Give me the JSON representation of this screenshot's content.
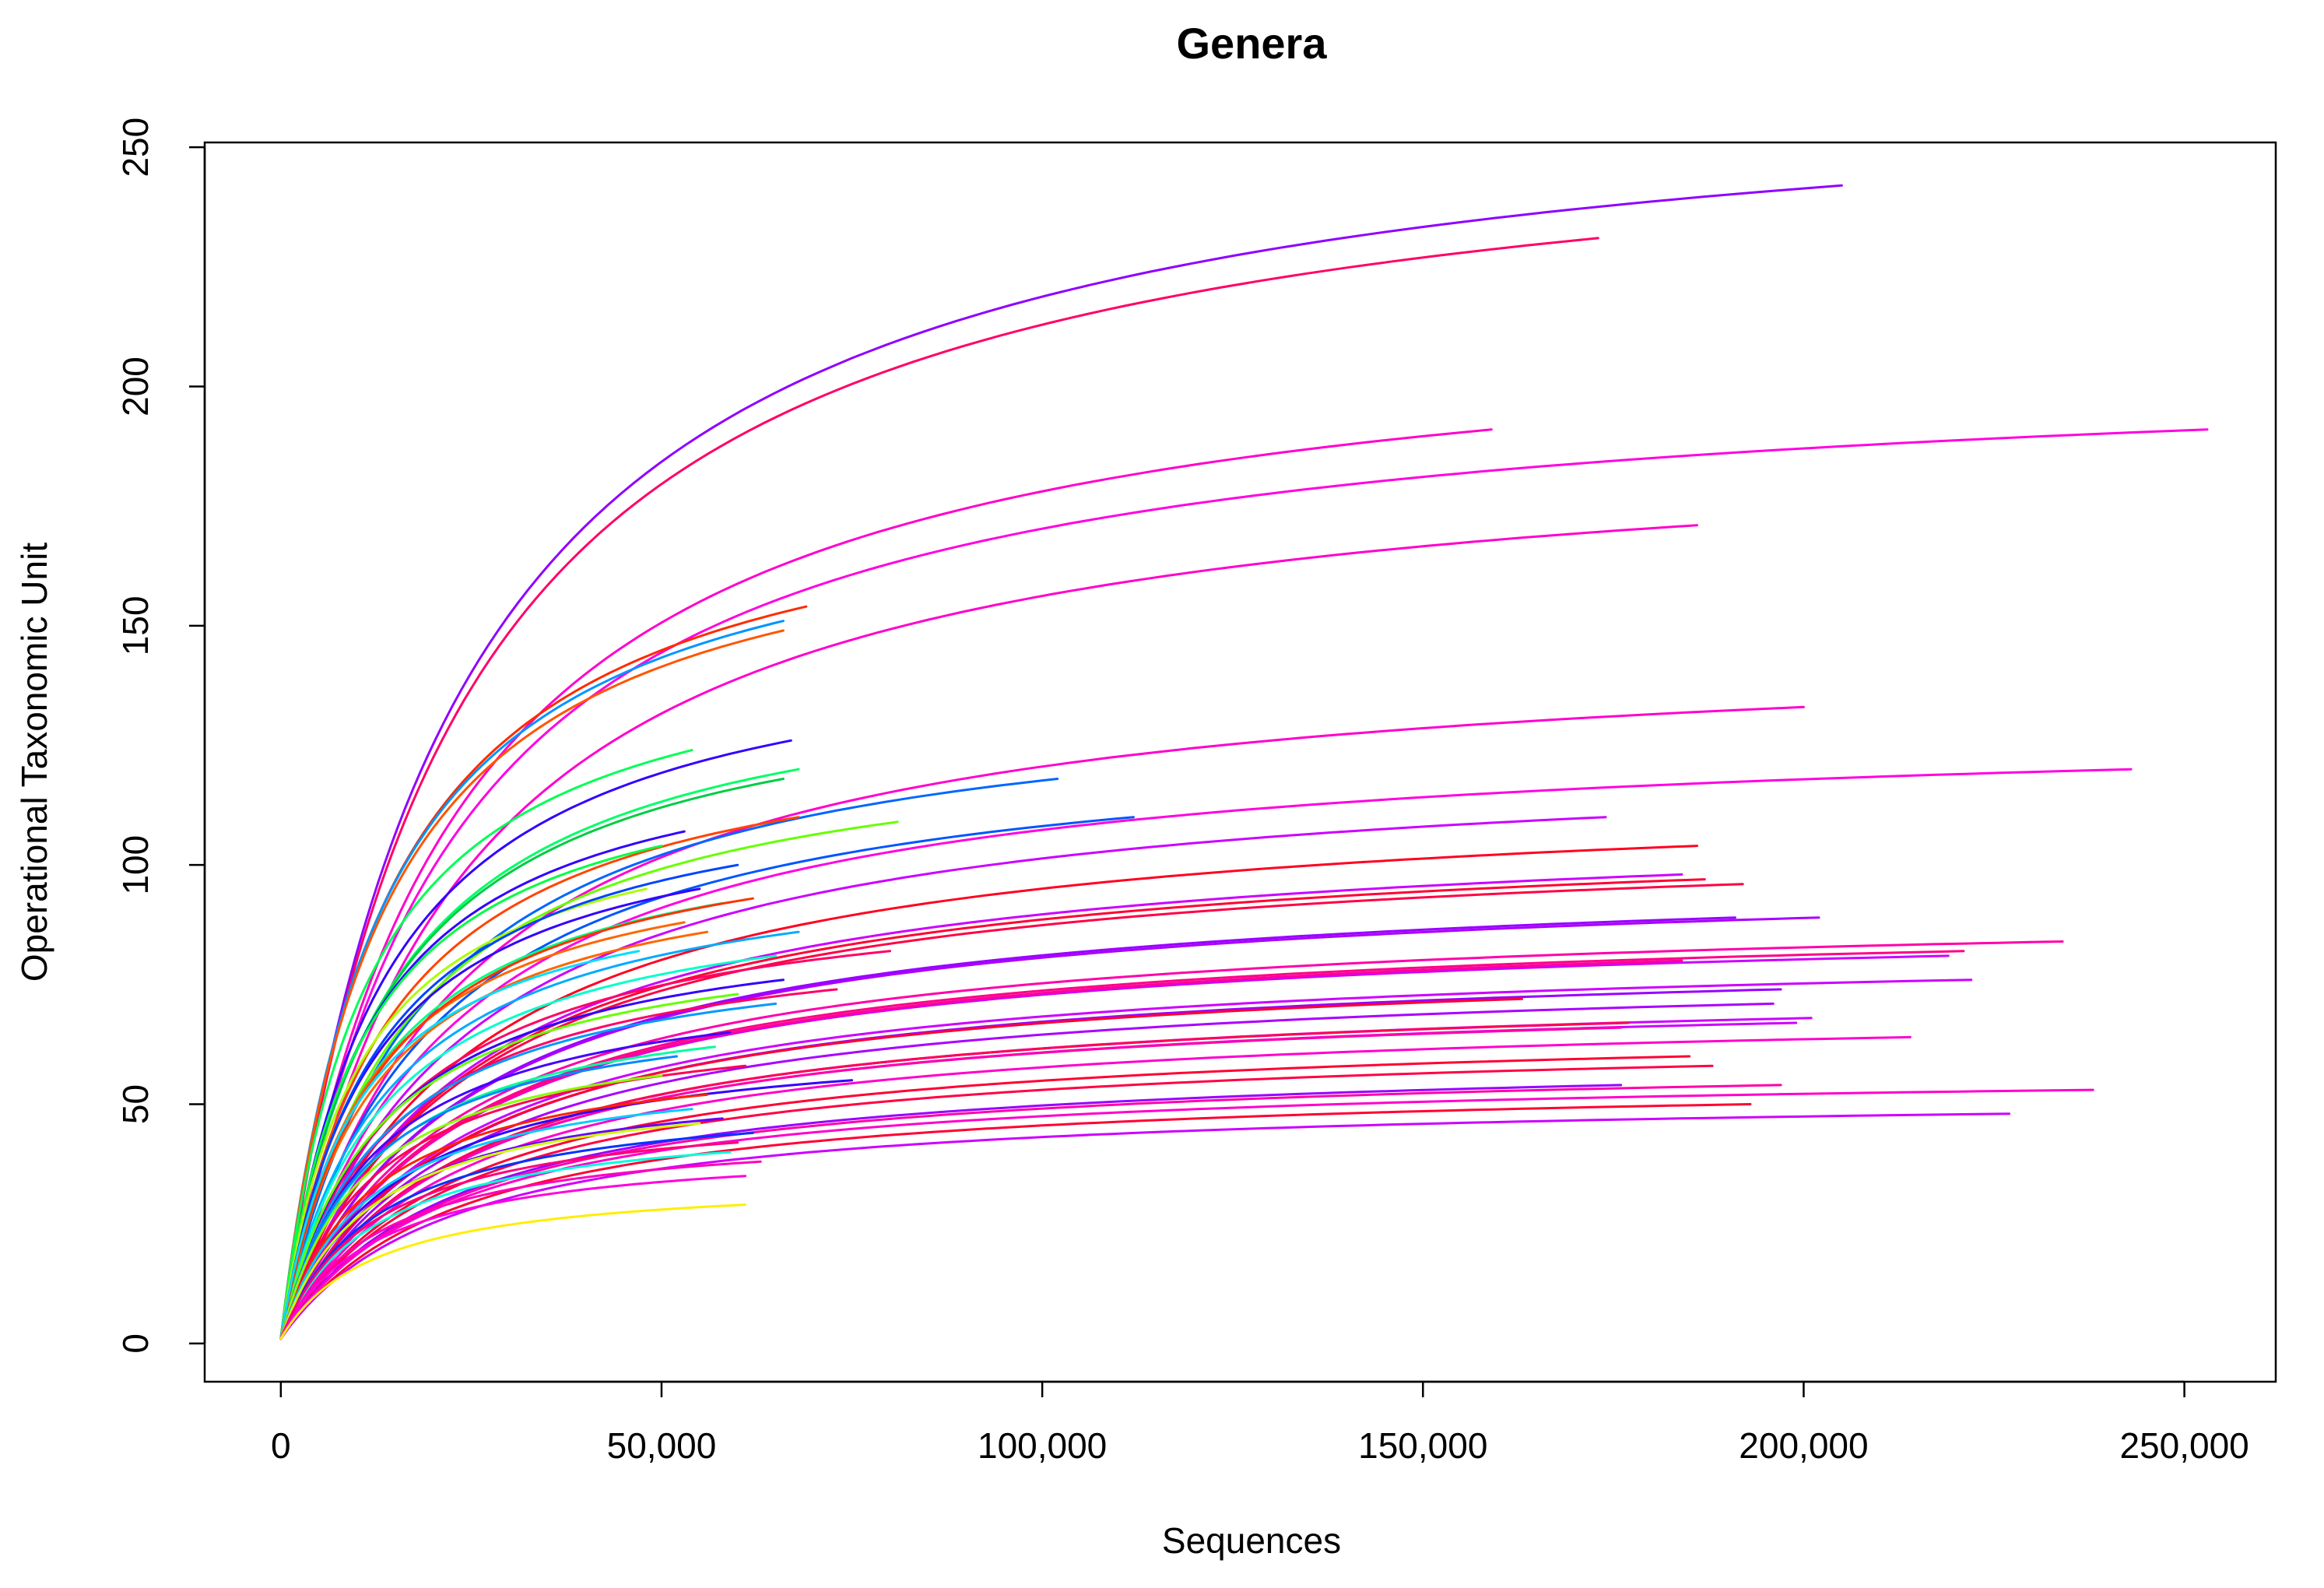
{
  "chart_data": {
    "type": "line",
    "title": "Genera",
    "xlabel": "Sequences",
    "ylabel": "Operational Taxonomic Unit",
    "xlim": [
      -10000,
      262000
    ],
    "ylim": [
      -8,
      251
    ],
    "x_ticks": [
      0,
      50000,
      100000,
      150000,
      200000,
      250000
    ],
    "x_tick_labels": [
      "0",
      "50,000",
      "100,000",
      "150,000",
      "200,000",
      "250,000"
    ],
    "y_ticks": [
      0,
      50,
      100,
      150,
      200,
      250
    ],
    "y_tick_labels": [
      "0",
      "50",
      "100",
      "150",
      "200",
      "250"
    ],
    "legend": "none",
    "grid": false,
    "curve_model": "y = 1 + (Smax - 1) * x / (K + x), rarefaction curves starting at 0 sequences",
    "series": [
      {
        "color": "#8F00FF",
        "values": [
          [
            0,
            1
          ],
          [
            205000,
            242
          ]
        ]
      },
      {
        "color": "#FF0066",
        "values": [
          [
            0,
            1
          ],
          [
            173000,
            231
          ]
        ]
      },
      {
        "color": "#FF00CC",
        "values": [
          [
            0,
            1
          ],
          [
            159000,
            191
          ]
        ]
      },
      {
        "color": "#FF00E0",
        "values": [
          [
            0,
            1
          ],
          [
            253000,
            191
          ]
        ]
      },
      {
        "color": "#FF00CC",
        "values": [
          [
            0,
            1
          ],
          [
            186000,
            171
          ]
        ]
      },
      {
        "color": "#FF2A00",
        "values": [
          [
            0,
            1
          ],
          [
            69000,
            154
          ]
        ]
      },
      {
        "color": "#0095FF",
        "values": [
          [
            0,
            1
          ],
          [
            66000,
            151
          ]
        ]
      },
      {
        "color": "#FF5500",
        "values": [
          [
            0,
            1
          ],
          [
            66000,
            149
          ]
        ]
      },
      {
        "color": "#FF00CC",
        "values": [
          [
            0,
            1
          ],
          [
            200000,
            133
          ]
        ]
      },
      {
        "color": "#3300FF",
        "values": [
          [
            0,
            1
          ],
          [
            67000,
            126
          ]
        ]
      },
      {
        "color": "#00FF55",
        "values": [
          [
            0,
            1
          ],
          [
            54000,
            124
          ]
        ]
      },
      {
        "color": "#FF00E0",
        "values": [
          [
            0,
            1
          ],
          [
            243000,
            120
          ]
        ]
      },
      {
        "color": "#00FF66",
        "values": [
          [
            0,
            1
          ],
          [
            68000,
            120
          ]
        ]
      },
      {
        "color": "#0066FF",
        "values": [
          [
            0,
            1
          ],
          [
            102000,
            118
          ]
        ]
      },
      {
        "color": "#00CC44",
        "values": [
          [
            0,
            1
          ],
          [
            66000,
            118
          ]
        ]
      },
      {
        "color": "#0055FF",
        "values": [
          [
            0,
            1
          ],
          [
            112000,
            110
          ]
        ]
      },
      {
        "color": "#66FF00",
        "values": [
          [
            0,
            1
          ],
          [
            81000,
            109
          ]
        ]
      },
      {
        "color": "#FF4400",
        "values": [
          [
            0,
            1
          ],
          [
            68000,
            110
          ]
        ]
      },
      {
        "color": "#CC00FF",
        "values": [
          [
            0,
            1
          ],
          [
            174000,
            110
          ]
        ]
      },
      {
        "color": "#3300FF",
        "values": [
          [
            0,
            1
          ],
          [
            53000,
            107
          ]
        ]
      },
      {
        "color": "#FF0022",
        "values": [
          [
            0,
            1
          ],
          [
            186000,
            104
          ]
        ]
      },
      {
        "color": "#FF0044",
        "values": [
          [
            0,
            1
          ],
          [
            192000,
            96
          ]
        ]
      },
      {
        "color": "#FF0033",
        "values": [
          [
            0,
            1
          ],
          [
            187000,
            97
          ]
        ]
      },
      {
        "color": "#CC00FF",
        "values": [
          [
            0,
            1
          ],
          [
            184000,
            98
          ]
        ]
      },
      {
        "color": "#9900FF",
        "values": [
          [
            0,
            1
          ],
          [
            191000,
            89
          ]
        ]
      },
      {
        "color": "#AA00FF",
        "values": [
          [
            0,
            1
          ],
          [
            202000,
            89
          ]
        ]
      },
      {
        "color": "#FF6600",
        "values": [
          [
            0,
            1
          ],
          [
            56000,
            86
          ]
        ]
      },
      {
        "color": "#00AAFF",
        "values": [
          [
            0,
            1
          ],
          [
            68000,
            86
          ]
        ]
      },
      {
        "color": "#FF0066",
        "values": [
          [
            0,
            1
          ],
          [
            80000,
            82
          ]
        ]
      },
      {
        "color": "#FF00AA",
        "values": [
          [
            0,
            1
          ],
          [
            234000,
            84
          ]
        ]
      },
      {
        "color": "#FF0088",
        "values": [
          [
            0,
            1
          ],
          [
            221000,
            82
          ]
        ]
      },
      {
        "color": "#CC00FF",
        "values": [
          [
            0,
            1
          ],
          [
            219000,
            81
          ]
        ]
      },
      {
        "color": "#FF0099",
        "values": [
          [
            0,
            1
          ],
          [
            184000,
            80
          ]
        ]
      },
      {
        "color": "#CC00FF",
        "values": [
          [
            0,
            1
          ],
          [
            222000,
            76
          ]
        ]
      },
      {
        "color": "#00FFCC",
        "values": [
          [
            0,
            1
          ],
          [
            65000,
            81
          ]
        ]
      },
      {
        "color": "#FF0066",
        "values": [
          [
            0,
            1
          ],
          [
            73000,
            74
          ]
        ]
      },
      {
        "color": "#3300FF",
        "values": [
          [
            0,
            1
          ],
          [
            66000,
            76
          ]
        ]
      },
      {
        "color": "#0099FF",
        "values": [
          [
            0,
            1
          ],
          [
            65000,
            71
          ]
        ]
      },
      {
        "color": "#66FF00",
        "values": [
          [
            0,
            1
          ],
          [
            60000,
            73
          ]
        ]
      },
      {
        "color": "#9900FF",
        "values": [
          [
            0,
            1
          ],
          [
            197000,
            74
          ]
        ]
      },
      {
        "color": "#AA00FF",
        "values": [
          [
            0,
            1
          ],
          [
            196000,
            71
          ]
        ]
      },
      {
        "color": "#FF0033",
        "values": [
          [
            0,
            1
          ],
          [
            163000,
            72
          ]
        ]
      },
      {
        "color": "#CC00FF",
        "values": [
          [
            0,
            1
          ],
          [
            201000,
            68
          ]
        ]
      },
      {
        "color": "#FF00CC",
        "values": [
          [
            0,
            1
          ],
          [
            214000,
            64
          ]
        ]
      },
      {
        "color": "#FF0055",
        "values": [
          [
            0,
            1
          ],
          [
            177000,
            67
          ]
        ]
      },
      {
        "color": "#CC00FF",
        "values": [
          [
            0,
            1
          ],
          [
            199000,
            67
          ]
        ]
      },
      {
        "color": "#FF00AA",
        "values": [
          [
            0,
            1
          ],
          [
            176000,
            66
          ]
        ]
      },
      {
        "color": "#FF0033",
        "values": [
          [
            0,
            1
          ],
          [
            185000,
            60
          ]
        ]
      },
      {
        "color": "#FF0044",
        "values": [
          [
            0,
            1
          ],
          [
            188000,
            58
          ]
        ]
      },
      {
        "color": "#3300FF",
        "values": [
          [
            0,
            1
          ],
          [
            75000,
            55
          ]
        ]
      },
      {
        "color": "#9900FF",
        "values": [
          [
            0,
            1
          ],
          [
            176000,
            54
          ]
        ]
      },
      {
        "color": "#FF00AA",
        "values": [
          [
            0,
            1
          ],
          [
            197000,
            54
          ]
        ]
      },
      {
        "color": "#FF0033",
        "values": [
          [
            0,
            1
          ],
          [
            193000,
            50
          ]
        ]
      },
      {
        "color": "#FF00CC",
        "values": [
          [
            0,
            1
          ],
          [
            238000,
            53
          ]
        ]
      },
      {
        "color": "#CC00FF",
        "values": [
          [
            0,
            1
          ],
          [
            227000,
            48
          ]
        ]
      },
      {
        "color": "#00FF88",
        "values": [
          [
            0,
            1
          ],
          [
            58000,
            92
          ]
        ]
      },
      {
        "color": "#3300FF",
        "values": [
          [
            0,
            1
          ],
          [
            55000,
            95
          ]
        ]
      },
      {
        "color": "#FF6600",
        "values": [
          [
            0,
            1
          ],
          [
            53000,
            88
          ]
        ]
      },
      {
        "color": "#00FF44",
        "values": [
          [
            0,
            1
          ],
          [
            50000,
            104
          ]
        ]
      },
      {
        "color": "#AAFF00",
        "values": [
          [
            0,
            1
          ],
          [
            48000,
            95
          ]
        ]
      },
      {
        "color": "#0044FF",
        "values": [
          [
            0,
            1
          ],
          [
            60000,
            100
          ]
        ]
      },
      {
        "color": "#FF3300",
        "values": [
          [
            0,
            1
          ],
          [
            62000,
            93
          ]
        ]
      },
      {
        "color": "#00DDFF",
        "values": [
          [
            0,
            1
          ],
          [
            47000,
            82
          ]
        ]
      },
      {
        "color": "#4400FF",
        "values": [
          [
            0,
            1
          ],
          [
            59000,
            65
          ]
        ]
      },
      {
        "color": "#00FF99",
        "values": [
          [
            0,
            1
          ],
          [
            57000,
            62
          ]
        ]
      },
      {
        "color": "#FF0055",
        "values": [
          [
            0,
            1
          ],
          [
            61000,
            58
          ]
        ]
      },
      {
        "color": "#0088FF",
        "values": [
          [
            0,
            1
          ],
          [
            52000,
            60
          ]
        ]
      },
      {
        "color": "#88FF00",
        "values": [
          [
            0,
            1
          ],
          [
            50000,
            56
          ]
        ]
      },
      {
        "color": "#FF2200",
        "values": [
          [
            0,
            1
          ],
          [
            56000,
            52
          ]
        ]
      },
      {
        "color": "#00CCFF",
        "values": [
          [
            0,
            1
          ],
          [
            54000,
            49
          ]
        ]
      },
      {
        "color": "#6600FF",
        "values": [
          [
            0,
            1
          ],
          [
            58000,
            47
          ]
        ]
      },
      {
        "color": "#0033FF",
        "values": [
          [
            0,
            1
          ],
          [
            62000,
            44
          ]
        ]
      },
      {
        "color": "#00FFDD",
        "values": [
          [
            0,
            1
          ],
          [
            59000,
            40
          ]
        ]
      },
      {
        "color": "#FF00BB",
        "values": [
          [
            0,
            1
          ],
          [
            63000,
            38
          ]
        ]
      },
      {
        "color": "#CCFF00",
        "values": [
          [
            0,
            1
          ],
          [
            55000,
            46
          ]
        ]
      },
      {
        "color": "#FF0077",
        "values": [
          [
            0,
            1
          ],
          [
            60000,
            42
          ]
        ]
      },
      {
        "color": "#FF00DD",
        "values": [
          [
            0,
            1
          ],
          [
            61000,
            35
          ]
        ]
      },
      {
        "color": "#FFEE00",
        "values": [
          [
            0,
            1
          ],
          [
            61000,
            29
          ]
        ]
      }
    ]
  }
}
